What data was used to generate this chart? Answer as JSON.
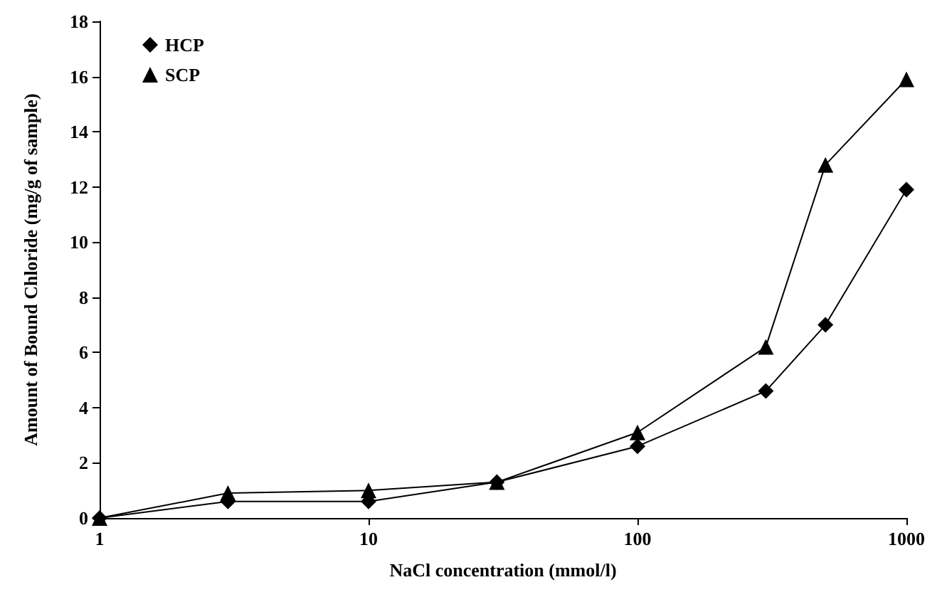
{
  "chart_data": {
    "type": "line",
    "xlabel": "NaCl concentration (mmol/l)",
    "ylabel": "Amount of Bound Chloride (mg/g of sample)",
    "x": [
      1,
      3,
      10,
      30,
      100,
      300,
      500,
      1000
    ],
    "series": [
      {
        "name": "HCP",
        "color": "#000000",
        "marker": "diamond",
        "values": [
          0,
          0.6,
          0.6,
          1.3,
          2.6,
          4.6,
          7.0,
          11.9
        ]
      },
      {
        "name": "SCP",
        "color": "#000000",
        "marker": "triangle",
        "values": [
          0,
          0.9,
          1.0,
          1.3,
          3.1,
          6.2,
          12.8,
          15.9
        ]
      }
    ],
    "log": "x",
    "xlim": [
      1,
      1000
    ],
    "xticks": [
      1,
      10,
      100,
      1000
    ],
    "ylim": [
      0,
      18
    ],
    "yticks": [
      0,
      2,
      4,
      6,
      8,
      10,
      12,
      14,
      16,
      18
    ],
    "grid": false,
    "legend": "top left",
    "line_style": "solid"
  }
}
